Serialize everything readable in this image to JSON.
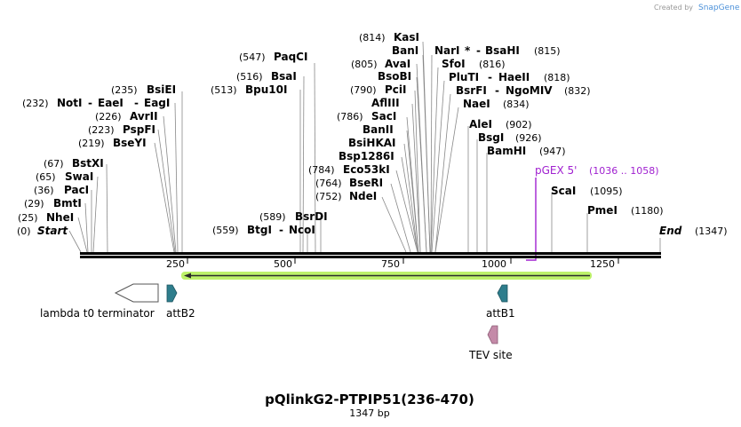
{
  "credit": {
    "created_by": "Created by",
    "brand": "SnapGene"
  },
  "title": "pQlinkG2-PTPIP51(236-470)",
  "length_label": "1347 bp",
  "ruler": {
    "ticks": [
      "250",
      "500",
      "750",
      "1000",
      "1250"
    ]
  },
  "sites": [
    {
      "pos": "(0)",
      "name": "Start",
      "italic": true
    },
    {
      "pos": "(25)",
      "name": "NheI"
    },
    {
      "pos": "(29)",
      "name": "BmtI"
    },
    {
      "pos": "(36)",
      "name": "PacI"
    },
    {
      "pos": "(65)",
      "name": "SwaI"
    },
    {
      "pos": "(67)",
      "name": "BstXI"
    },
    {
      "pos": "(219)",
      "name": "BseYI"
    },
    {
      "pos": "(223)",
      "name": "PspFI"
    },
    {
      "pos": "(226)",
      "name": "AvrII"
    },
    {
      "pos": "(232)",
      "name": "NotI",
      "extra": [
        "EaeI",
        "EagI"
      ]
    },
    {
      "pos": "(235)",
      "name": "BsiEI"
    },
    {
      "pos": "(513)",
      "name": "Bpu10I"
    },
    {
      "pos": "(516)",
      "name": "BsaI"
    },
    {
      "pos": "(547)",
      "name": "PaqCI"
    },
    {
      "pos": "(559)",
      "name": "BtgI",
      "extra": [
        "NcoI"
      ]
    },
    {
      "pos": "(589)",
      "name": "BsrDI"
    },
    {
      "pos": "(752)",
      "name": "NdeI"
    },
    {
      "pos": "(764)",
      "name": "BseRI"
    },
    {
      "pos": "(784)",
      "name": "Eco53kI"
    },
    {
      "name": "Bsp1286I"
    },
    {
      "name": "BsiHKAI"
    },
    {
      "name": "BanII"
    },
    {
      "pos": "(786)",
      "name": "SacI"
    },
    {
      "name": "AflIII"
    },
    {
      "pos": "(790)",
      "name": "PciI"
    },
    {
      "name": "BsoBI"
    },
    {
      "pos": "(805)",
      "name": "AvaI"
    },
    {
      "pos": "(814)",
      "name": "KasI"
    },
    {
      "name": "BanI"
    },
    {
      "name": "NarI",
      "star": "*",
      "extra": [
        "BsaHI"
      ],
      "pos_after": "(815)"
    },
    {
      "name": "SfoI",
      "pos_after": "(816)"
    },
    {
      "name": "PluTI",
      "extra": [
        "HaeII"
      ],
      "pos_after": "(818)"
    },
    {
      "name": "BsrFI",
      "extra": [
        "NgoMIV"
      ],
      "pos_after": "(832)"
    },
    {
      "name": "NaeI",
      "pos_after": "(834)"
    },
    {
      "name": "AleI",
      "pos_after": "(902)"
    },
    {
      "name": "BsgI",
      "pos_after": "(926)"
    },
    {
      "name": "BamHI",
      "pos_after": "(947)"
    },
    {
      "name": "ScaI",
      "pos_after": "(1095)"
    },
    {
      "name": "PmeI",
      "pos_after": "(1180)"
    },
    {
      "name": "End",
      "italic": true,
      "pos_after": "(1347)"
    }
  ],
  "primer": {
    "name": "pGEX 5'",
    "range": "(1036 .. 1058)",
    "color": "#a020d0"
  },
  "features": {
    "terminator": "lambda t0 terminator",
    "attB2": "attB2",
    "attB1": "attB1",
    "tev": "TEV site"
  },
  "colors": {
    "att": "#2e7d8c",
    "tev": "#c48aa8",
    "orf_glow": "#b6f05a",
    "brand": "#4a90d9"
  }
}
